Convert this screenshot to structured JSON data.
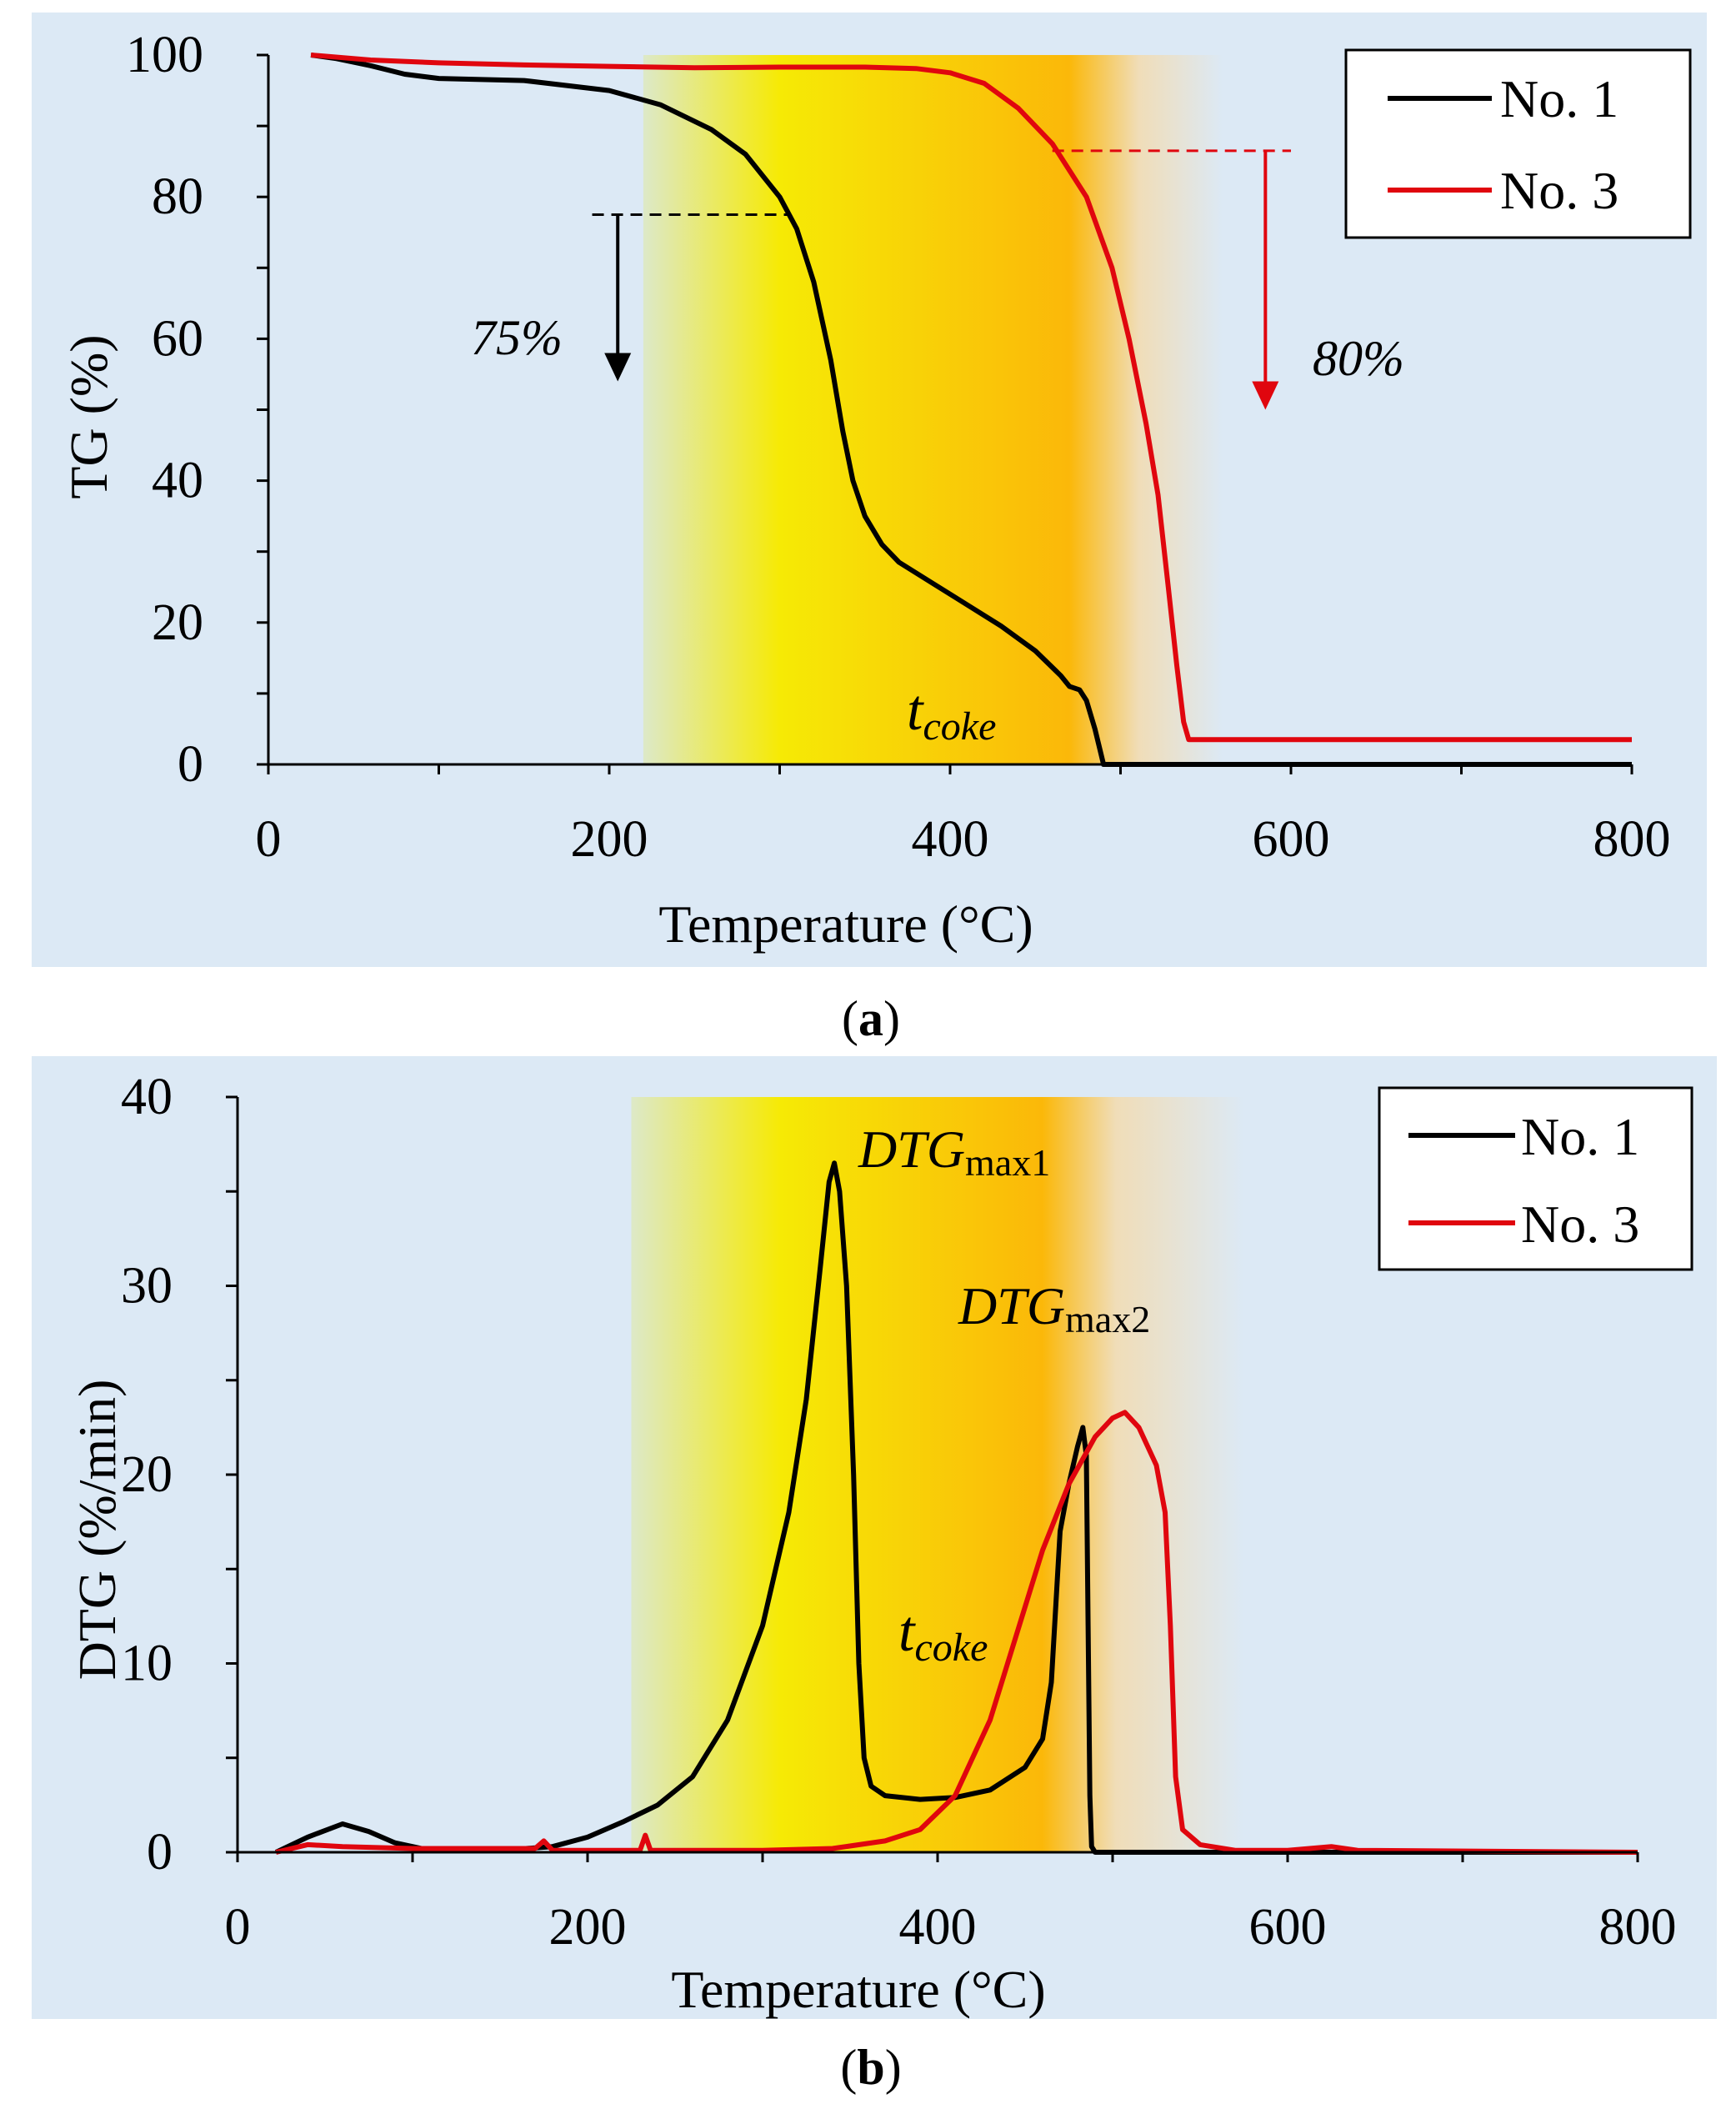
{
  "colors": {
    "panel_bg": "#dce9f5",
    "series_1": "#000000",
    "series_3": "#e0060e",
    "band_green": "#dde9c8",
    "band_yellow": "#f6ea05",
    "band_orange": "#fbb809",
    "band_tan": "#f0ddb8"
  },
  "chart_data": [
    {
      "type": "line",
      "panel_label": "(a)",
      "panel_letter": "a",
      "xlabel": "Temperature  (°C)",
      "ylabel": "TG (%)",
      "xlim": [
        0,
        800
      ],
      "ylim": [
        0,
        100
      ],
      "x_ticks": [
        0,
        200,
        400,
        600,
        800
      ],
      "y_ticks": [
        0,
        20,
        40,
        60,
        80,
        100
      ],
      "x_tick_labels": [
        "0",
        "200",
        "400",
        "600",
        "800"
      ],
      "y_tick_labels": [
        "0",
        "20",
        "40",
        "60",
        "80",
        "100"
      ],
      "legend": [
        "No. 1",
        "No. 3"
      ],
      "legend_position": "top-right",
      "shaded_band": {
        "start": 220,
        "peak_start": 300,
        "peak_end": 470,
        "end": 560,
        "y_top": 100
      },
      "series": [
        {
          "name": "No. 1",
          "color": "#000000",
          "points": [
            [
              25,
              100
            ],
            [
              40,
              99.5
            ],
            [
              60,
              98.5
            ],
            [
              80,
              97.3
            ],
            [
              100,
              96.7
            ],
            [
              150,
              96.4
            ],
            [
              200,
              95
            ],
            [
              230,
              93
            ],
            [
              260,
              89.5
            ],
            [
              280,
              86
            ],
            [
              300,
              80
            ],
            [
              310,
              75.5
            ],
            [
              320,
              68
            ],
            [
              330,
              57
            ],
            [
              337,
              47
            ],
            [
              343,
              40
            ],
            [
              350,
              35
            ],
            [
              360,
              31
            ],
            [
              370,
              28.5
            ],
            [
              390,
              25.5
            ],
            [
              410,
              22.5
            ],
            [
              430,
              19.5
            ],
            [
              450,
              16
            ],
            [
              465,
              12.5
            ],
            [
              470,
              11
            ],
            [
              476,
              10.5
            ],
            [
              480,
              9
            ],
            [
              485,
              5
            ],
            [
              488,
              2
            ],
            [
              490,
              0
            ],
            [
              800,
              0
            ]
          ]
        },
        {
          "name": "No. 3",
          "color": "#e0060e",
          "points": [
            [
              25,
              100
            ],
            [
              60,
              99.3
            ],
            [
              100,
              98.9
            ],
            [
              150,
              98.6
            ],
            [
              200,
              98.4
            ],
            [
              250,
              98.2
            ],
            [
              300,
              98.3
            ],
            [
              350,
              98.3
            ],
            [
              380,
              98.1
            ],
            [
              400,
              97.5
            ],
            [
              420,
              96
            ],
            [
              440,
              92.5
            ],
            [
              460,
              87.5
            ],
            [
              480,
              80
            ],
            [
              495,
              70
            ],
            [
              505,
              60
            ],
            [
              515,
              48
            ],
            [
              522,
              38
            ],
            [
              528,
              25
            ],
            [
              533,
              14
            ],
            [
              537,
              6
            ],
            [
              540,
              3.5
            ],
            [
              800,
              3.5
            ]
          ]
        }
      ],
      "annotations": [
        {
          "text": "75%",
          "color": "#000000",
          "dash_y": 77.5,
          "dash_x": [
            190,
            305
          ],
          "arrow_x": 205,
          "arrow_y": [
            77.5,
            54
          ]
        },
        {
          "text": "80%",
          "color": "#e0060e",
          "dash_y": 86.5,
          "dash_x": [
            460,
            600
          ],
          "arrow_x": 585,
          "arrow_y": [
            86.5,
            50
          ]
        },
        {
          "text_main": "t",
          "text_sub": "coke"
        }
      ]
    },
    {
      "type": "line",
      "panel_label": "(b)",
      "panel_letter": "b",
      "xlabel": "Temperature  (°C)",
      "ylabel": "DTG (%/min)",
      "xlim": [
        0,
        800
      ],
      "ylim": [
        0,
        40
      ],
      "x_ticks": [
        0,
        200,
        400,
        600,
        800
      ],
      "y_ticks": [
        0,
        10,
        20,
        30,
        40
      ],
      "x_tick_labels": [
        "0",
        "200",
        "400",
        "600",
        "800"
      ],
      "y_tick_labels": [
        "0",
        "10",
        "20",
        "30",
        "40"
      ],
      "legend": [
        "No. 1",
        "No. 3"
      ],
      "legend_position": "top-right",
      "shaded_band": {
        "start": 225,
        "peak_start": 310,
        "peak_end": 460,
        "end": 575,
        "y_top": 40
      },
      "series": [
        {
          "name": "No. 1",
          "color": "#000000",
          "points": [
            [
              22,
              0
            ],
            [
              40,
              0.8
            ],
            [
              60,
              1.5
            ],
            [
              75,
              1.1
            ],
            [
              90,
              0.5
            ],
            [
              110,
              0.1
            ],
            [
              150,
              0.1
            ],
            [
              180,
              0.3
            ],
            [
              200,
              0.8
            ],
            [
              220,
              1.6
            ],
            [
              240,
              2.5
            ],
            [
              260,
              4
            ],
            [
              280,
              7
            ],
            [
              300,
              12
            ],
            [
              315,
              18
            ],
            [
              325,
              24
            ],
            [
              333,
              31
            ],
            [
              338,
              35.5
            ],
            [
              341,
              36.5
            ],
            [
              344,
              35
            ],
            [
              348,
              30
            ],
            [
              352,
              20
            ],
            [
              355,
              10
            ],
            [
              358,
              5
            ],
            [
              362,
              3.5
            ],
            [
              370,
              3
            ],
            [
              390,
              2.8
            ],
            [
              410,
              2.9
            ],
            [
              430,
              3.3
            ],
            [
              450,
              4.5
            ],
            [
              460,
              6
            ],
            [
              465,
              9
            ],
            [
              470,
              17
            ],
            [
              475,
              19.5
            ],
            [
              480,
              21.5
            ],
            [
              483,
              22.5
            ],
            [
              485,
              21
            ],
            [
              486,
              12
            ],
            [
              487,
              3
            ],
            [
              488,
              0.3
            ],
            [
              490,
              0
            ],
            [
              800,
              0
            ]
          ]
        },
        {
          "name": "No. 3",
          "color": "#e0060e",
          "points": [
            [
              22,
              0
            ],
            [
              40,
              0.4
            ],
            [
              60,
              0.3
            ],
            [
              100,
              0.2
            ],
            [
              170,
              0.2
            ],
            [
              175,
              0.6
            ],
            [
              180,
              0.1
            ],
            [
              230,
              0.1
            ],
            [
              233,
              0.9
            ],
            [
              236,
              0.1
            ],
            [
              300,
              0.1
            ],
            [
              340,
              0.2
            ],
            [
              370,
              0.6
            ],
            [
              390,
              1.2
            ],
            [
              410,
              3
            ],
            [
              430,
              7
            ],
            [
              445,
              11.5
            ],
            [
              460,
              16
            ],
            [
              475,
              19.5
            ],
            [
              490,
              22
            ],
            [
              500,
              23
            ],
            [
              507,
              23.3
            ],
            [
              515,
              22.5
            ],
            [
              525,
              20.5
            ],
            [
              530,
              18
            ],
            [
              533,
              12
            ],
            [
              536,
              4
            ],
            [
              540,
              1.2
            ],
            [
              550,
              0.4
            ],
            [
              570,
              0.1
            ],
            [
              600,
              0.1
            ],
            [
              625,
              0.3
            ],
            [
              640,
              0.1
            ],
            [
              800,
              0
            ]
          ]
        }
      ],
      "annotations": [
        {
          "text_main": "DTG",
          "text_sub": "max1"
        },
        {
          "text_main": "DTG",
          "text_sub": "max2"
        },
        {
          "text_main": "t",
          "text_sub": "coke"
        }
      ]
    }
  ]
}
